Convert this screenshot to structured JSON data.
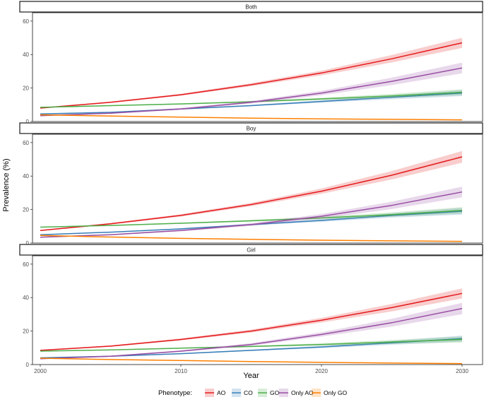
{
  "chart_data": {
    "type": "line",
    "ylabel": "Prevalence (%)",
    "xlabel": "Year",
    "xlim": [
      2000,
      2030
    ],
    "ylim": [
      0,
      65
    ],
    "x_ticks": [
      2000,
      2010,
      2020,
      2030
    ],
    "y_ticks": [
      0,
      20,
      40,
      60
    ],
    "legend": {
      "title": "Phenotype:",
      "position": "bottom"
    },
    "series_meta": [
      {
        "name": "AO",
        "color": "#E41A1C"
      },
      {
        "name": "CO",
        "color": "#377EB8"
      },
      {
        "name": "GO",
        "color": "#4DAF4A"
      },
      {
        "name": "Only AO",
        "color": "#984EA3"
      },
      {
        "name": "Only GO",
        "color": "#FF7F00"
      }
    ],
    "x": [
      2000,
      2005,
      2010,
      2015,
      2020,
      2025,
      2030
    ],
    "panels": [
      {
        "title": "Both",
        "series": [
          {
            "name": "AO",
            "values": [
              8.0,
              11.5,
              16.0,
              22.0,
              29.0,
              37.5,
              47.0
            ],
            "band": [
              0.3,
              0.4,
              0.6,
              0.9,
              1.4,
              2.2,
              3.0
            ]
          },
          {
            "name": "CO",
            "values": [
              4.5,
              5.5,
              7.5,
              9.5,
              12.0,
              14.5,
              17.0
            ],
            "band": [
              0.2,
              0.2,
              0.3,
              0.4,
              0.7,
              1.2,
              1.8
            ]
          },
          {
            "name": "GO",
            "values": [
              8.5,
              9.5,
              10.5,
              11.8,
              13.5,
              15.3,
              17.5
            ],
            "band": [
              0.2,
              0.2,
              0.3,
              0.4,
              0.7,
              1.2,
              1.8
            ]
          },
          {
            "name": "Only AO",
            "values": [
              3.5,
              5.0,
              7.5,
              11.5,
              17.0,
              24.0,
              32.0
            ],
            "band": [
              0.2,
              0.3,
              0.5,
              0.8,
              1.3,
              2.2,
              3.2
            ]
          },
          {
            "name": "Only GO",
            "values": [
              4.0,
              3.3,
              2.6,
              2.0,
              1.6,
              1.3,
              1.0
            ],
            "band": [
              0.1,
              0.1,
              0.1,
              0.1,
              0.1,
              0.1,
              0.1
            ]
          }
        ]
      },
      {
        "title": "Boy",
        "series": [
          {
            "name": "AO",
            "values": [
              7.5,
              11.5,
              16.5,
              23.0,
              31.0,
              40.5,
              51.5
            ],
            "band": [
              0.3,
              0.5,
              0.7,
              1.0,
              1.6,
              2.5,
              3.5
            ]
          },
          {
            "name": "CO",
            "values": [
              5.0,
              6.5,
              8.5,
              11.0,
              13.5,
              16.5,
              19.0
            ],
            "band": [
              0.2,
              0.2,
              0.3,
              0.5,
              0.8,
              1.3,
              2.0
            ]
          },
          {
            "name": "GO",
            "values": [
              9.5,
              10.5,
              11.8,
              13.3,
              15.0,
              17.0,
              19.5
            ],
            "band": [
              0.2,
              0.2,
              0.3,
              0.5,
              0.8,
              1.3,
              2.0
            ]
          },
          {
            "name": "Only AO",
            "values": [
              3.5,
              5.0,
              7.5,
              11.0,
              16.0,
              22.5,
              30.5
            ],
            "band": [
              0.2,
              0.3,
              0.5,
              0.8,
              1.3,
              2.2,
              3.2
            ]
          },
          {
            "name": "Only GO",
            "values": [
              4.5,
              3.6,
              2.8,
              2.2,
              1.7,
              1.3,
              1.0
            ],
            "band": [
              0.1,
              0.1,
              0.1,
              0.1,
              0.1,
              0.1,
              0.1
            ]
          }
        ]
      },
      {
        "title": "Girl",
        "series": [
          {
            "name": "AO",
            "values": [
              8.5,
              11.0,
              15.0,
              20.0,
              26.5,
              34.0,
              42.5
            ],
            "band": [
              0.3,
              0.4,
              0.6,
              0.9,
              1.4,
              2.2,
              3.0
            ]
          },
          {
            "name": "CO",
            "values": [
              4.0,
              5.0,
              6.5,
              8.5,
              10.5,
              13.0,
              15.5
            ],
            "band": [
              0.2,
              0.2,
              0.3,
              0.4,
              0.7,
              1.2,
              1.8
            ]
          },
          {
            "name": "GO",
            "values": [
              8.0,
              8.8,
              9.8,
              10.8,
              12.0,
              13.5,
              15.0
            ],
            "band": [
              0.2,
              0.2,
              0.3,
              0.4,
              0.7,
              1.2,
              1.8
            ]
          },
          {
            "name": "Only AO",
            "values": [
              3.5,
              5.0,
              8.0,
              12.0,
              18.0,
              25.0,
              33.5
            ],
            "band": [
              0.2,
              0.3,
              0.5,
              0.8,
              1.3,
              2.3,
              3.4
            ]
          },
          {
            "name": "Only GO",
            "values": [
              3.8,
              3.0,
              2.4,
              1.8,
              1.3,
              0.9,
              0.6
            ],
            "band": [
              0.1,
              0.1,
              0.1,
              0.1,
              0.1,
              0.1,
              0.1
            ]
          }
        ]
      }
    ]
  }
}
